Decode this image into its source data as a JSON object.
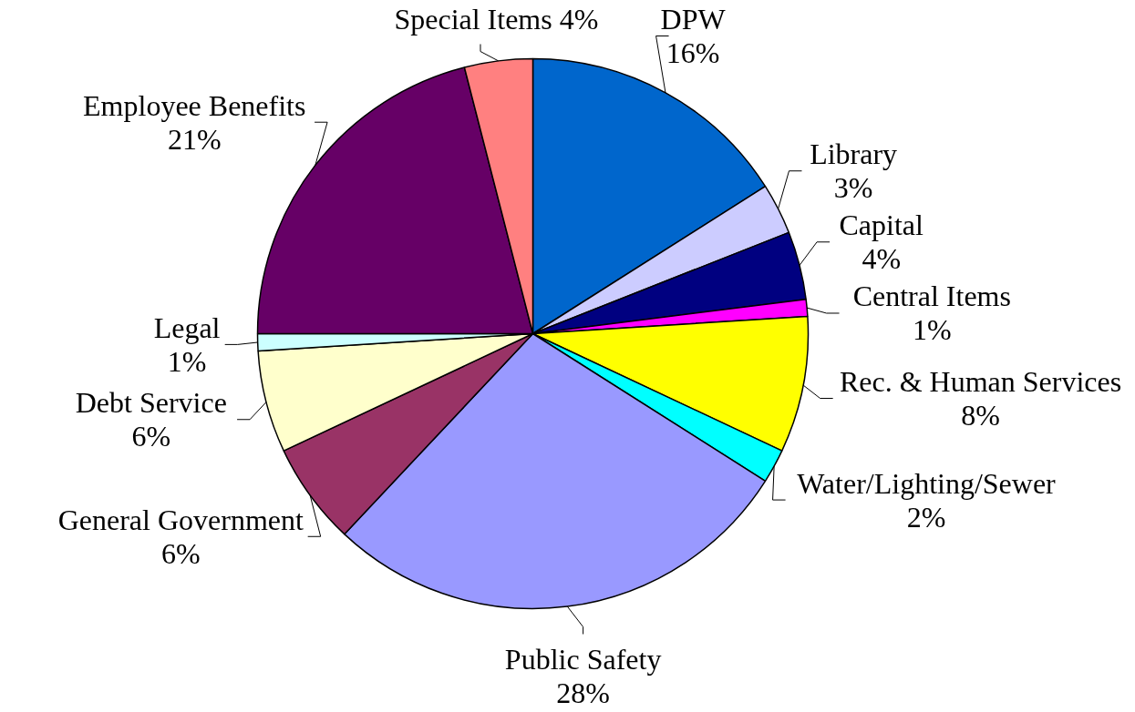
{
  "chart_data": {
    "type": "pie",
    "categories": [
      "DPW",
      "Library",
      "Capital",
      "Central Items",
      "Rec. & Human Services",
      "Water/Lighting/Sewer",
      "Public Safety",
      "General Government",
      "Debt Service",
      "Legal",
      "Employee Benefits",
      "Special Items"
    ],
    "values": [
      16,
      3,
      4,
      1,
      8,
      2,
      28,
      6,
      6,
      1,
      21,
      4
    ],
    "colors": [
      "#0066cc",
      "#ccccff",
      "#000080",
      "#ff00ff",
      "#ffff00",
      "#00ffff",
      "#9999ff",
      "#993366",
      "#ffffcc",
      "#ccffff",
      "#660066",
      "#ff8080"
    ],
    "value_labels": [
      "16%",
      "3%",
      "4%",
      "1%",
      "8%",
      "2%",
      "28%",
      "6%",
      "6%",
      "1%",
      "21%",
      "4%"
    ]
  }
}
